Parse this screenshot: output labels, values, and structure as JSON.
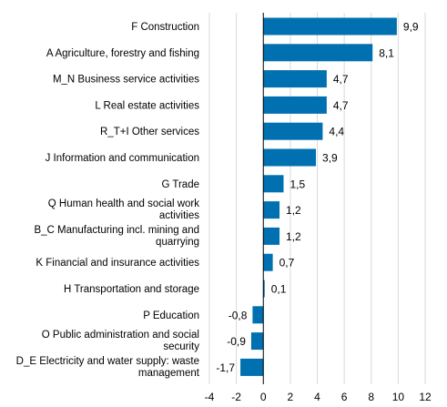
{
  "chart_data": {
    "type": "bar",
    "orientation": "horizontal",
    "categories": [
      [
        "F Construction"
      ],
      [
        "A Agriculture, forestry and fishing"
      ],
      [
        "M_N Business service activities"
      ],
      [
        "L Real estate activities"
      ],
      [
        "R_T+I Other services"
      ],
      [
        "J Information and communication"
      ],
      [
        "G Trade"
      ],
      [
        "Q  Human health and social work",
        "activities"
      ],
      [
        "B_C Manufacturing incl. mining and",
        "quarrying"
      ],
      [
        "K Financial and insurance activities"
      ],
      [
        "H Transportation and storage"
      ],
      [
        "P Education"
      ],
      [
        "O Public administration and social",
        "security"
      ],
      [
        "D_E Electricity and water supply: waste",
        "management"
      ]
    ],
    "values": [
      9.9,
      8.1,
      4.7,
      4.7,
      4.4,
      3.9,
      1.5,
      1.2,
      1.2,
      0.7,
      0.1,
      -0.8,
      -0.9,
      -1.7
    ],
    "value_labels": [
      "9,9",
      "8,1",
      "4,7",
      "4,7",
      "4,4",
      "3,9",
      "1,5",
      "1,2",
      "1,2",
      "0,7",
      "0,1",
      "-0,8",
      "-0,9",
      "-1,7"
    ],
    "xticks": [
      -4,
      -2,
      0,
      2,
      4,
      6,
      8,
      10,
      12
    ],
    "xlim": [
      -4,
      12
    ],
    "title": "",
    "xlabel": "",
    "ylabel": "",
    "grid": "vertical",
    "legend": "none",
    "bar_color": "#0070b0"
  }
}
